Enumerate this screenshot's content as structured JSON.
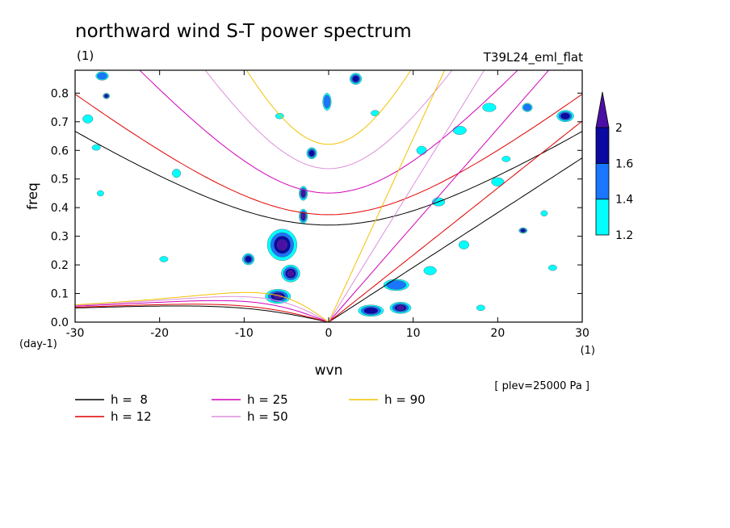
{
  "chart_data": {
    "type": "heatmap",
    "title": "northward wind S-T power spectrum",
    "units_label": "(1)",
    "run_label": "T39L24_eml_flat",
    "xlabel": "wvn",
    "ylabel": "freq",
    "x_units": "(1)",
    "y_units": "(day-1)",
    "level_note": "[ plev=25000 Pa ]",
    "xlim": [
      -30,
      30
    ],
    "ylim": [
      0.0,
      0.88
    ],
    "x_ticks": [
      -30,
      -20,
      -10,
      0,
      10,
      20,
      30
    ],
    "x_tick_labels": [
      "-30",
      "-20",
      "-10",
      "0",
      "10",
      "20",
      "30"
    ],
    "y_ticks": [
      0.0,
      0.1,
      0.2,
      0.3,
      0.4,
      0.5,
      0.6,
      0.7,
      0.8
    ],
    "y_tick_labels": [
      "0.0",
      "0.1",
      "0.2",
      "0.3",
      "0.4",
      "0.5",
      "0.6",
      "0.7",
      "0.8"
    ],
    "colorbar": {
      "levels": [
        1.2,
        1.4,
        1.6,
        2
      ],
      "level_labels": [
        "1.2",
        "1.4",
        "1.6",
        "2"
      ],
      "colors": [
        "#00ffff",
        "#1a75ff",
        "#0a0aa0",
        "#4b0fa5"
      ],
      "extend": "max"
    },
    "dispersion_curves": [
      {
        "name": "h =  8",
        "h": 8,
        "color": "#000000"
      },
      {
        "name": "h = 12",
        "h": 12,
        "color": "#e00000"
      },
      {
        "name": "h = 25",
        "h": 25,
        "color": "#d000b8"
      },
      {
        "name": "h = 50",
        "h": 50,
        "color": "#dc90dc"
      },
      {
        "name": "h = 90",
        "h": 90,
        "color": "#f2c200"
      }
    ],
    "power_blobs": [
      {
        "x": -5.5,
        "y": 0.27,
        "w": 3.5,
        "h": 0.11,
        "level": 2
      },
      {
        "x": -4.5,
        "y": 0.17,
        "w": 2.2,
        "h": 0.06,
        "level": 2
      },
      {
        "x": -6.0,
        "y": 0.09,
        "w": 3.0,
        "h": 0.05,
        "level": 2
      },
      {
        "x": -3.0,
        "y": 0.37,
        "w": 1.0,
        "h": 0.05,
        "level": 2
      },
      {
        "x": -3.0,
        "y": 0.45,
        "w": 1.0,
        "h": 0.05,
        "level": 2
      },
      {
        "x": -2.0,
        "y": 0.59,
        "w": 1.2,
        "h": 0.04,
        "level": 1.6
      },
      {
        "x": -0.2,
        "y": 0.77,
        "w": 1.0,
        "h": 0.06,
        "level": 1.4
      },
      {
        "x": 3.2,
        "y": 0.85,
        "w": 1.4,
        "h": 0.04,
        "level": 1.6
      },
      {
        "x": 8.5,
        "y": 0.05,
        "w": 2.5,
        "h": 0.04,
        "level": 2
      },
      {
        "x": 5.0,
        "y": 0.04,
        "w": 3.0,
        "h": 0.04,
        "level": 1.6
      },
      {
        "x": 8.0,
        "y": 0.13,
        "w": 3.0,
        "h": 0.04,
        "level": 1.4
      },
      {
        "x": -9.5,
        "y": 0.22,
        "w": 1.4,
        "h": 0.04,
        "level": 1.6
      },
      {
        "x": 28.0,
        "y": 0.72,
        "w": 2.0,
        "h": 0.04,
        "level": 1.6
      },
      {
        "x": 23.5,
        "y": 0.75,
        "w": 1.2,
        "h": 0.03,
        "level": 1.4
      },
      {
        "x": -26.8,
        "y": 0.86,
        "w": 1.5,
        "h": 0.03,
        "level": 1.4
      },
      {
        "x": -18.0,
        "y": 0.52,
        "w": 1.0,
        "h": 0.03,
        "level": 1.2
      },
      {
        "x": 13.0,
        "y": 0.42,
        "w": 1.5,
        "h": 0.03,
        "level": 1.2
      },
      {
        "x": 20.0,
        "y": 0.49,
        "w": 1.5,
        "h": 0.03,
        "level": 1.2
      },
      {
        "x": 15.5,
        "y": 0.67,
        "w": 1.6,
        "h": 0.03,
        "level": 1.2
      },
      {
        "x": 19.0,
        "y": 0.75,
        "w": 1.6,
        "h": 0.03,
        "level": 1.2
      },
      {
        "x": -28.5,
        "y": 0.71,
        "w": 1.2,
        "h": 0.03,
        "level": 1.2
      },
      {
        "x": -27.5,
        "y": 0.61,
        "w": 1.0,
        "h": 0.02,
        "level": 1.2
      },
      {
        "x": 23.0,
        "y": 0.32,
        "w": 1.0,
        "h": 0.02,
        "level": 1.6
      },
      {
        "x": 16.0,
        "y": 0.27,
        "w": 1.2,
        "h": 0.03,
        "level": 1.2
      },
      {
        "x": 12.0,
        "y": 0.18,
        "w": 1.5,
        "h": 0.03,
        "level": 1.2
      },
      {
        "x": 11.0,
        "y": 0.6,
        "w": 1.2,
        "h": 0.03,
        "level": 1.2
      },
      {
        "x": -5.8,
        "y": 0.72,
        "w": 1.0,
        "h": 0.02,
        "level": 1.2
      },
      {
        "x": 26.5,
        "y": 0.19,
        "w": 1.0,
        "h": 0.02,
        "level": 1.2
      },
      {
        "x": -26.3,
        "y": 0.79,
        "w": 0.8,
        "h": 0.02,
        "level": 1.6
      },
      {
        "x": -19.5,
        "y": 0.22,
        "w": 1.0,
        "h": 0.02,
        "level": 1.2
      },
      {
        "x": -27.0,
        "y": 0.45,
        "w": 0.8,
        "h": 0.02,
        "level": 1.2
      },
      {
        "x": 5.5,
        "y": 0.73,
        "w": 1.0,
        "h": 0.02,
        "level": 1.2
      },
      {
        "x": 21.0,
        "y": 0.57,
        "w": 1.0,
        "h": 0.02,
        "level": 1.2
      },
      {
        "x": 25.5,
        "y": 0.38,
        "w": 0.8,
        "h": 0.02,
        "level": 1.2
      },
      {
        "x": 18.0,
        "y": 0.05,
        "w": 1.0,
        "h": 0.02,
        "level": 1.2
      }
    ]
  }
}
